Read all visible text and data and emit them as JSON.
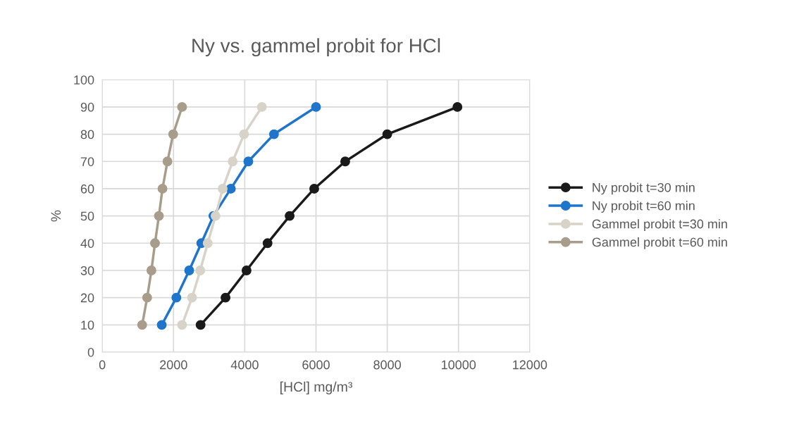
{
  "chart_data": {
    "type": "line",
    "title": "Ny vs. gammel probit for HCl",
    "xlabel": "[HCl] mg/m³",
    "ylabel": "%",
    "xlim": [
      0,
      12000
    ],
    "xticks": [
      0,
      2000,
      4000,
      6000,
      8000,
      10000,
      12000
    ],
    "ylim": [
      0,
      100
    ],
    "yticks": [
      0,
      10,
      20,
      30,
      40,
      50,
      60,
      70,
      80,
      90,
      100
    ],
    "grid": true,
    "legend": "right",
    "marker": "circle",
    "line_style": "solid",
    "series": [
      {
        "name": "Ny probit t=30 min",
        "color": "#1a1a1a",
        "x": [
          2760,
          3460,
          4050,
          4640,
          5260,
          5950,
          6820,
          8000,
          9970
        ],
        "values": [
          10,
          20,
          30,
          40,
          50,
          60,
          70,
          80,
          90
        ]
      },
      {
        "name": "Ny probit t=60 min",
        "color": "#1f74cc",
        "x": [
          1670,
          2080,
          2440,
          2780,
          3120,
          3610,
          4100,
          4820,
          6000
        ],
        "values": [
          10,
          20,
          30,
          40,
          50,
          60,
          70,
          80,
          90
        ]
      },
      {
        "name": "Gammel probit t=30 min",
        "color": "#d8d3c8",
        "x": [
          2240,
          2520,
          2750,
          2960,
          3180,
          3380,
          3660,
          3980,
          4480
        ],
        "values": [
          10,
          20,
          30,
          40,
          50,
          60,
          70,
          80,
          90
        ]
      },
      {
        "name": "Gammel probit t=60 min",
        "color": "#a89c8b",
        "x": [
          1120,
          1260,
          1380,
          1480,
          1590,
          1690,
          1830,
          1990,
          2240
        ],
        "values": [
          10,
          20,
          30,
          40,
          50,
          60,
          70,
          80,
          90
        ]
      }
    ]
  }
}
